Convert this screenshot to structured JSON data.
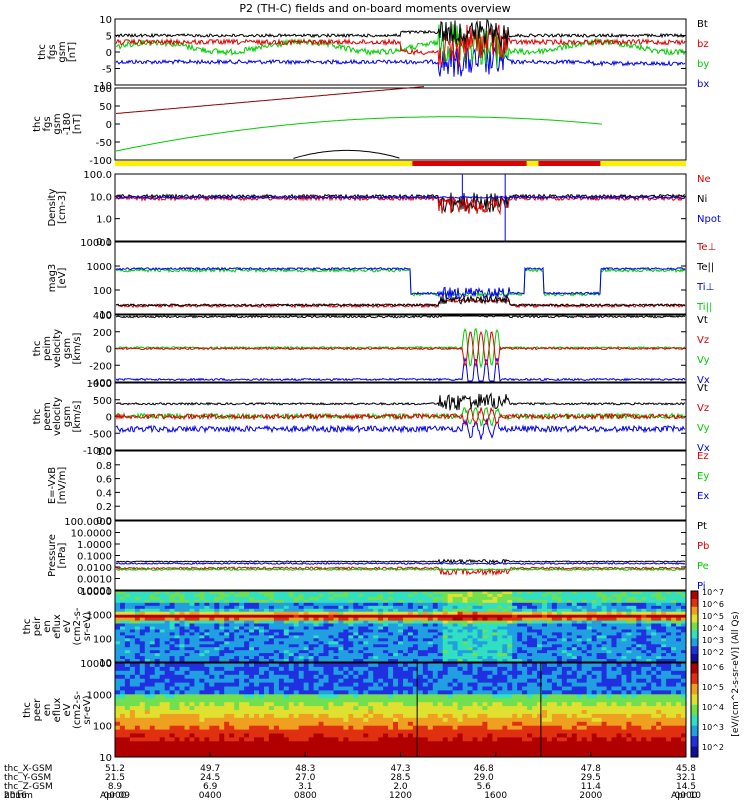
{
  "title": "P2 (TH-C) fields and on-board moments overview",
  "colors": {
    "black": "#000000",
    "red": "#e00000",
    "green": "#00cc00",
    "blue": "#0000ee",
    "darkred": "#8b0000"
  },
  "panels": [
    {
      "id": "fgs",
      "ylabel": [
        "thc",
        "fgs",
        "gsm",
        "[nT]"
      ],
      "ticks": [
        "10",
        "5",
        "0",
        "-5",
        "-10"
      ],
      "legend": [
        [
          "Bt",
          "black"
        ],
        [
          "bz",
          "red"
        ],
        [
          "by",
          "green"
        ],
        [
          "bx",
          "blue"
        ]
      ]
    },
    {
      "id": "pos",
      "ylabel": [
        "thc",
        "fgs",
        "gsm",
        "-180",
        "[nT]"
      ],
      "ticks": [
        "100",
        "50",
        "0",
        "-50",
        "-100"
      ],
      "legend": []
    },
    {
      "id": "density",
      "ylabel": [
        "Density",
        "[cm-3]"
      ],
      "ticks": [
        "100.0",
        "10.0",
        "1.0",
        "0.1"
      ],
      "legend": [
        [
          "Ne",
          "red"
        ],
        [
          "Ni",
          "black"
        ],
        [
          "Npot",
          "blue"
        ]
      ]
    },
    {
      "id": "temp",
      "ylabel": [
        "mag3",
        "[eV]"
      ],
      "ticks": [
        "10000",
        "1000",
        "100",
        "10"
      ],
      "legend": [
        [
          "Te⊥",
          "red"
        ],
        [
          "Te||",
          "black"
        ],
        [
          "Ti⊥",
          "blue"
        ],
        [
          "Ti||",
          "green"
        ]
      ]
    },
    {
      "id": "vi",
      "ylabel": [
        "thc",
        "peim",
        "velocity",
        "gsm",
        "[km/s]"
      ],
      "ticks": [
        "400",
        "200",
        "0",
        "-200",
        "-400"
      ],
      "legend": [
        [
          "Vt",
          "black"
        ],
        [
          "Vz",
          "red"
        ],
        [
          "Vy",
          "green"
        ],
        [
          "Vx",
          "blue"
        ]
      ]
    },
    {
      "id": "ve",
      "ylabel": [
        "thc",
        "peem",
        "velocity",
        "gsm",
        "[km/s]"
      ],
      "ticks": [
        "1000",
        "500",
        "0",
        "-500",
        "-1000"
      ],
      "legend": [
        [
          "Vt",
          "black"
        ],
        [
          "Vz",
          "red"
        ],
        [
          "Vy",
          "green"
        ],
        [
          "Vx",
          "blue"
        ]
      ]
    },
    {
      "id": "efield",
      "ylabel": [
        "E=-VxB",
        "[mV/m]"
      ],
      "ticks": [
        "1.0",
        "0.8",
        "0.6",
        "0.4",
        "0.2",
        "0.0"
      ],
      "legend": [
        [
          "Ez",
          "red"
        ],
        [
          "Ey",
          "green"
        ],
        [
          "Ex",
          "blue"
        ]
      ]
    },
    {
      "id": "pressure",
      "ylabel": [
        "Pressure",
        "[nPa]"
      ],
      "ticks": [
        "100.0000",
        "10.0000",
        "1.0000",
        "0.1000",
        "0.0100",
        "0.0010",
        "0.0001"
      ],
      "legend": [
        [
          "Pt",
          "black"
        ],
        [
          "Pb",
          "red"
        ],
        [
          "Pe",
          "green"
        ],
        [
          "Pi",
          "blue"
        ]
      ]
    },
    {
      "id": "peir",
      "ylabel": [
        "thc",
        "peir",
        "en",
        "eflux",
        "eV",
        "(cm2-s-",
        "sr-eV)"
      ],
      "ticks": [
        "10000",
        "1000",
        "100",
        "10"
      ],
      "legend": []
    },
    {
      "id": "peer",
      "ylabel": [
        "thc",
        "peer",
        "en",
        "eflux",
        "eV",
        "(cm2-s-",
        "sr-eV)"
      ],
      "ticks": [
        "10000",
        "1000",
        "100",
        "10"
      ],
      "legend": []
    }
  ],
  "colorbar": {
    "label": "[eV/(cm^2-s-sr-eV)] (All Qs)",
    "ticks": [
      "10^7",
      "10^6",
      "10^5",
      "10^4",
      "10^3",
      "10^2",
      "10^6",
      "10^5",
      "10^4",
      "10^3",
      "10^2"
    ]
  },
  "xaxis": {
    "rows": [
      {
        "name": "thc_X-GSM",
        "values": [
          "51.2",
          "49.7",
          "48.3",
          "47.3",
          "46.8",
          "47.8",
          "45.8"
        ]
      },
      {
        "name": "thc_Y-GSM",
        "values": [
          "21.5",
          "24.5",
          "27.0",
          "28.5",
          "29.0",
          "29.5",
          "32.1"
        ]
      },
      {
        "name": "thc_Z-GSM",
        "values": [
          "8.9",
          "6.9",
          "3.1",
          "2.0",
          "5.6",
          "11.4",
          "14.5"
        ]
      },
      {
        "name": "hhmm",
        "values": [
          "0000",
          "0400",
          "0800",
          "1200",
          "1600",
          "2000",
          "0000"
        ]
      }
    ],
    "footer_left": "2016",
    "dates": [
      "Apr 09",
      "Apr 10"
    ]
  },
  "chart_data": {
    "type": "line",
    "title": "P2 (TH-C) fields and on-board moments overview",
    "x_hours": [
      0,
      4,
      8,
      12,
      16,
      20,
      24
    ],
    "x_tick_labels": [
      "0000",
      "0400",
      "0800",
      "1200",
      "1600",
      "2000",
      "0000"
    ],
    "series": [
      {
        "name": "Bt",
        "panel": "fgs",
        "x": [
          0,
          4,
          8,
          12,
          14,
          15,
          16,
          20,
          24
        ],
        "values": [
          5,
          5,
          5,
          6,
          6,
          7,
          5,
          4,
          3
        ]
      },
      {
        "name": "bz",
        "panel": "fgs",
        "x": [
          0,
          4,
          8,
          12,
          14,
          15,
          16,
          20,
          24
        ],
        "values": [
          3,
          2,
          3,
          1,
          -2,
          2,
          2,
          2,
          2
        ]
      },
      {
        "name": "by",
        "panel": "fgs",
        "x": [
          0,
          4,
          8,
          12,
          14,
          15,
          16,
          20,
          24
        ],
        "values": [
          1,
          2,
          3,
          1,
          3,
          -4,
          3,
          3,
          2
        ]
      },
      {
        "name": "bx",
        "panel": "fgs",
        "x": [
          0,
          4,
          8,
          12,
          14,
          15,
          16,
          20,
          24
        ],
        "values": [
          -3,
          -2,
          -1,
          -3,
          -5,
          -3,
          -4,
          -4,
          -4
        ]
      },
      {
        "name": "Vx",
        "panel": "vi",
        "x": [
          0,
          4,
          8,
          12,
          14,
          15,
          16,
          20,
          24
        ],
        "values": [
          -370,
          -370,
          -370,
          -370,
          -370,
          -250,
          -370,
          -370,
          -370
        ]
      },
      {
        "name": "Vt",
        "panel": "vi",
        "x": [
          0,
          4,
          8,
          12,
          14,
          15,
          16,
          20,
          24
        ],
        "values": [
          370,
          370,
          370,
          370,
          370,
          300,
          370,
          370,
          370
        ]
      }
    ]
  }
}
